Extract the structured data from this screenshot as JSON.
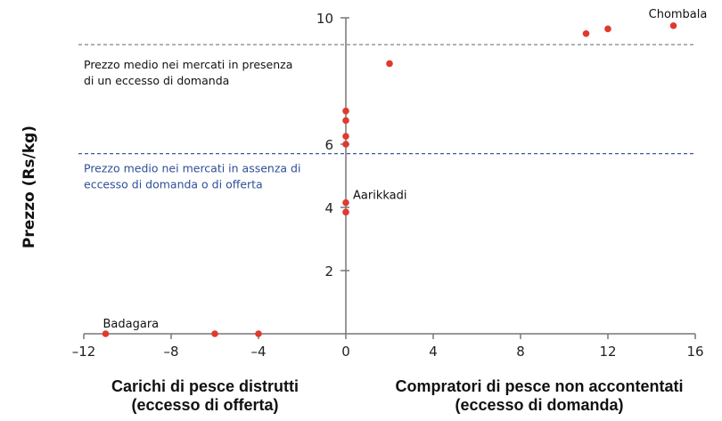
{
  "chart_data": {
    "type": "scatter",
    "ylabel": "Prezzo (Rs/kg)",
    "xlabel_left": [
      "Carichi di pesce distrutti",
      "(eccesso di offerta)"
    ],
    "xlabel_right": [
      "Compratori di pesce non accontentati",
      "(eccesso di domanda)"
    ],
    "xlim": [
      -12,
      16
    ],
    "ylim": [
      0,
      10
    ],
    "xticks": [
      -12,
      -8,
      -4,
      0,
      4,
      8,
      12,
      16
    ],
    "xtick_labels": [
      "–12",
      "–8",
      "–4",
      "0",
      "4",
      "8",
      "12",
      "16"
    ],
    "yticks": [
      2,
      4,
      6,
      10
    ],
    "ytick_labels": [
      "2",
      "4",
      "6",
      "10"
    ],
    "grid": false,
    "point_color": "#e03a2f",
    "points": [
      {
        "x": -11,
        "y": 0,
        "label": "Badagara"
      },
      {
        "x": -6,
        "y": 0
      },
      {
        "x": -4,
        "y": 0
      },
      {
        "x": 0,
        "y": 3.85
      },
      {
        "x": 0,
        "y": 4.15,
        "label": "Aarikkadi"
      },
      {
        "x": 0,
        "y": 6.0
      },
      {
        "x": 0,
        "y": 6.25
      },
      {
        "x": 0,
        "y": 6.75
      },
      {
        "x": 0,
        "y": 7.05
      },
      {
        "x": 2,
        "y": 8.55
      },
      {
        "x": 11,
        "y": 9.5
      },
      {
        "x": 12,
        "y": 9.65
      },
      {
        "x": 15,
        "y": 9.75,
        "label": "Chombala"
      }
    ],
    "reference_lines": [
      {
        "y": 9.15,
        "color": "#8a9299",
        "label": [
          "Prezzo medio nei mercati in presenza",
          "di un eccesso di domanda"
        ]
      },
      {
        "y": 5.7,
        "color": "#3a5a9a",
        "label": [
          "Prezzo medio nei mercati in assenza di",
          "eccesso di domanda o di offerta"
        ]
      }
    ]
  }
}
